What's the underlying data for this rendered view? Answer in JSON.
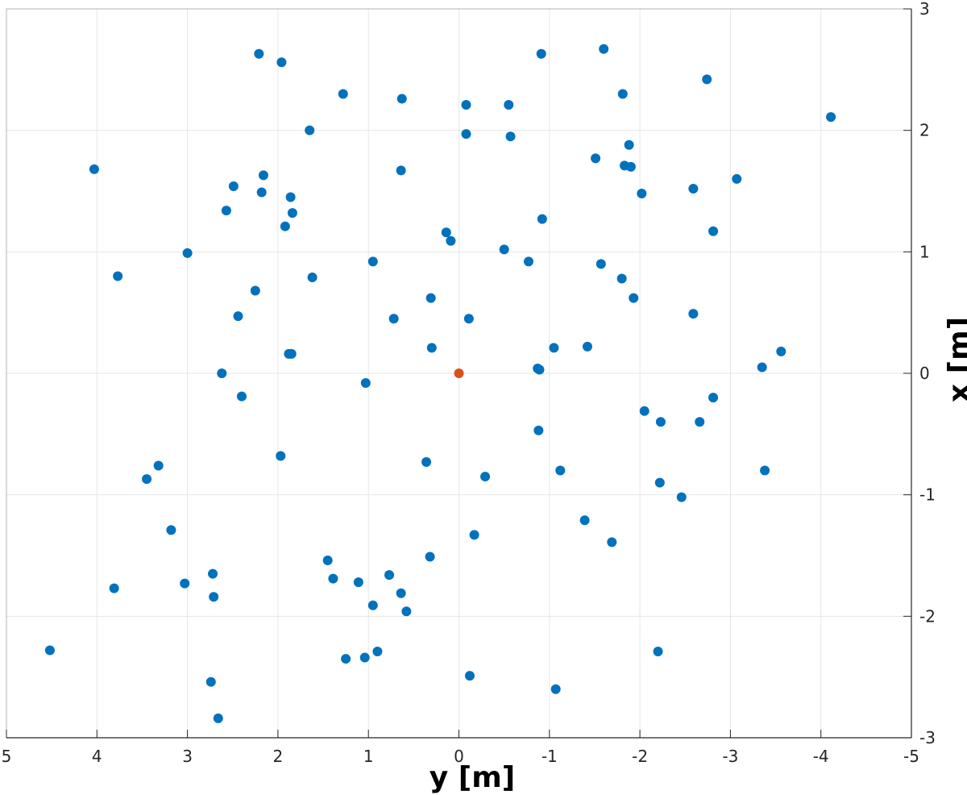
{
  "chart_data": {
    "type": "scatter",
    "xlabel": "y [m]",
    "ylabel": "x [m]",
    "xlim": [
      5,
      -5
    ],
    "ylim": [
      -3,
      3
    ],
    "x_reversed": true,
    "y_axis_location": "right",
    "grid": true,
    "xticks": [
      5,
      4,
      3,
      2,
      1,
      0,
      -1,
      -2,
      -3,
      -4,
      -5
    ],
    "yticks": [
      -3,
      -2,
      -1,
      0,
      1,
      2,
      3
    ],
    "xtick_labels": [
      "5",
      "4",
      "3",
      "2",
      "1",
      "0",
      "-1",
      "-2",
      "-3",
      "-4",
      "-5"
    ],
    "ytick_labels": [
      "-3",
      "-2",
      "-1",
      "0",
      "1",
      "2",
      "3"
    ],
    "colors": {
      "points": "#0072BD",
      "origin": "#D95319",
      "grid": "#E6E6E6",
      "axis": "#262626"
    },
    "series": [
      {
        "color": "#0072BD",
        "points": [
          [
            2.21,
            2.63
          ],
          [
            1.96,
            2.56
          ],
          [
            1.28,
            2.3
          ],
          [
            0.63,
            2.26
          ],
          [
            -0.08,
            2.21
          ],
          [
            -0.55,
            2.21
          ],
          [
            -0.91,
            2.63
          ],
          [
            -1.6,
            2.67
          ],
          [
            -1.81,
            2.3
          ],
          [
            -2.74,
            2.42
          ],
          [
            -4.11,
            2.11
          ],
          [
            1.65,
            2.0
          ],
          [
            -0.08,
            1.97
          ],
          [
            -0.57,
            1.95
          ],
          [
            -1.88,
            1.88
          ],
          [
            -1.51,
            1.77
          ],
          [
            -1.83,
            1.71
          ],
          [
            -1.9,
            1.7
          ],
          [
            4.03,
            1.68
          ],
          [
            0.64,
            1.67
          ],
          [
            2.16,
            1.63
          ],
          [
            2.49,
            1.54
          ],
          [
            2.18,
            1.49
          ],
          [
            1.86,
            1.45
          ],
          [
            -2.59,
            1.52
          ],
          [
            -3.07,
            1.6
          ],
          [
            -2.02,
            1.48
          ],
          [
            2.57,
            1.34
          ],
          [
            1.84,
            1.32
          ],
          [
            -0.92,
            1.27
          ],
          [
            1.92,
            1.21
          ],
          [
            0.14,
            1.16
          ],
          [
            0.09,
            1.09
          ],
          [
            -2.81,
            1.17
          ],
          [
            -0.5,
            1.02
          ],
          [
            3.0,
            0.99
          ],
          [
            0.95,
            0.92
          ],
          [
            -0.77,
            0.92
          ],
          [
            -1.57,
            0.9
          ],
          [
            3.77,
            0.8
          ],
          [
            1.62,
            0.79
          ],
          [
            -1.8,
            0.78
          ],
          [
            2.25,
            0.68
          ],
          [
            0.31,
            0.62
          ],
          [
            -1.93,
            0.62
          ],
          [
            -2.59,
            0.49
          ],
          [
            2.44,
            0.47
          ],
          [
            0.72,
            0.45
          ],
          [
            -0.11,
            0.45
          ],
          [
            0.3,
            0.21
          ],
          [
            -1.05,
            0.21
          ],
          [
            -1.42,
            0.22
          ],
          [
            -3.56,
            0.18
          ],
          [
            1.88,
            0.16
          ],
          [
            1.85,
            0.16
          ],
          [
            -0.87,
            0.04
          ],
          [
            -0.89,
            0.03
          ],
          [
            -3.35,
            0.05
          ],
          [
            2.62,
            0.0
          ],
          [
            1.03,
            -0.08
          ],
          [
            2.4,
            -0.19
          ],
          [
            -2.81,
            -0.2
          ],
          [
            -2.05,
            -0.31
          ],
          [
            -2.23,
            -0.4
          ],
          [
            -2.66,
            -0.4
          ],
          [
            -0.88,
            -0.47
          ],
          [
            1.97,
            -0.68
          ],
          [
            0.36,
            -0.73
          ],
          [
            3.32,
            -0.76
          ],
          [
            3.45,
            -0.87
          ],
          [
            -1.12,
            -0.8
          ],
          [
            -3.38,
            -0.8
          ],
          [
            -0.29,
            -0.85
          ],
          [
            -2.22,
            -0.9
          ],
          [
            -2.46,
            -1.02
          ],
          [
            -1.39,
            -1.21
          ],
          [
            3.18,
            -1.29
          ],
          [
            -0.17,
            -1.33
          ],
          [
            -1.69,
            -1.39
          ],
          [
            0.32,
            -1.51
          ],
          [
            1.45,
            -1.54
          ],
          [
            2.72,
            -1.65
          ],
          [
            0.77,
            -1.66
          ],
          [
            1.39,
            -1.69
          ],
          [
            1.11,
            -1.72
          ],
          [
            3.03,
            -1.73
          ],
          [
            3.81,
            -1.77
          ],
          [
            0.64,
            -1.81
          ],
          [
            2.71,
            -1.84
          ],
          [
            0.95,
            -1.91
          ],
          [
            0.58,
            -1.96
          ],
          [
            4.52,
            -2.28
          ],
          [
            0.9,
            -2.29
          ],
          [
            1.04,
            -2.34
          ],
          [
            1.25,
            -2.35
          ],
          [
            -2.2,
            -2.29
          ],
          [
            -0.12,
            -2.49
          ],
          [
            2.74,
            -2.54
          ],
          [
            -1.07,
            -2.6
          ],
          [
            2.66,
            -2.84
          ]
        ]
      },
      {
        "color": "#D95319",
        "points": [
          [
            0,
            0
          ]
        ]
      }
    ]
  }
}
